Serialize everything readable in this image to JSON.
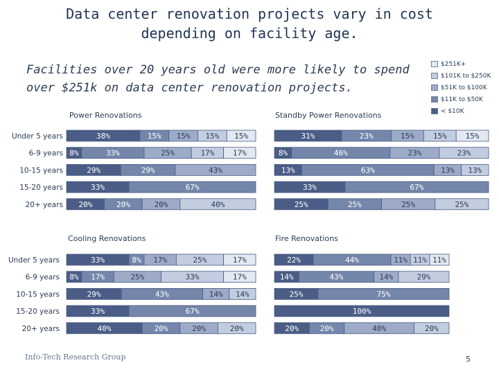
{
  "title_lines": [
    "Data center renovation projects vary in cost",
    "depending on facility age."
  ],
  "subtitle_lines": [
    "Facilities over 20 years old were more likely to spend",
    "over $251k on data center renovation projects."
  ],
  "legend": [
    {
      "label": "$251K+",
      "color": "#e3e8f1"
    },
    {
      "label": "$101K to $250K",
      "color": "#c3cde0"
    },
    {
      "label": "$51K to $100K",
      "color": "#9dabc8"
    },
    {
      "label": "$11K to $50K",
      "color": "#7586ab"
    },
    {
      "label": "< $10K",
      "color": "#4b5d86"
    }
  ],
  "footer": "Info-Tech Research Group",
  "page_number": "5",
  "chart_data": [
    {
      "type": "bar",
      "stacked": true,
      "orientation": "horizontal",
      "title": "Power Renovations",
      "categories": [
        "Under 5 years",
        "6-9 years",
        "10-15 years",
        "15-20 years",
        "20+ years"
      ],
      "series": [
        {
          "name": "< $10K",
          "values": [
            38,
            8,
            29,
            33,
            20
          ]
        },
        {
          "name": "$11K to $50K",
          "values": [
            15,
            33,
            29,
            67,
            20
          ]
        },
        {
          "name": "$51K to $100K",
          "values": [
            15,
            25,
            43,
            0,
            20
          ]
        },
        {
          "name": "$101K to $250K",
          "values": [
            15,
            17,
            0,
            0,
            40
          ]
        },
        {
          "name": "$251K+",
          "values": [
            15,
            17,
            0,
            0,
            0
          ]
        }
      ],
      "xlim": [
        0,
        100
      ]
    },
    {
      "type": "bar",
      "stacked": true,
      "orientation": "horizontal",
      "title": "Standby Power Renovations",
      "categories": [
        "Under 5 years",
        "6-9 years",
        "10-15 years",
        "15-20 years",
        "20+ years"
      ],
      "series": [
        {
          "name": "< $10K",
          "values": [
            31,
            8,
            13,
            33,
            25
          ]
        },
        {
          "name": "$11K to $50K",
          "values": [
            23,
            46,
            63,
            67,
            25
          ]
        },
        {
          "name": "$51K to $100K",
          "values": [
            15,
            23,
            13,
            0,
            25
          ]
        },
        {
          "name": "$101K to $250K",
          "values": [
            15,
            23,
            13,
            0,
            25
          ]
        },
        {
          "name": "$251K+",
          "values": [
            15,
            0,
            0,
            0,
            0
          ]
        }
      ],
      "xlim": [
        0,
        100
      ]
    },
    {
      "type": "bar",
      "stacked": true,
      "orientation": "horizontal",
      "title": "Cooling Renovations",
      "categories": [
        "Under 5 years",
        "6-9 years",
        "10-15 years",
        "15-20 years",
        "20+ years"
      ],
      "series": [
        {
          "name": "< $10K",
          "values": [
            33,
            8,
            29,
            33,
            40
          ]
        },
        {
          "name": "$11K to $50K",
          "values": [
            8,
            17,
            43,
            67,
            20
          ]
        },
        {
          "name": "$51K to $100K",
          "values": [
            17,
            25,
            14,
            0,
            20
          ]
        },
        {
          "name": "$101K to $250K",
          "values": [
            25,
            33,
            14,
            0,
            20
          ]
        },
        {
          "name": "$251K+",
          "values": [
            17,
            17,
            0,
            0,
            0
          ]
        }
      ],
      "xlim": [
        0,
        100
      ]
    },
    {
      "type": "bar",
      "stacked": true,
      "orientation": "horizontal",
      "title": "Fire Renovations",
      "categories": [
        "Under 5 years",
        "6-9 years",
        "10-15 years",
        "15-20 years",
        "20+ years"
      ],
      "series": [
        {
          "name": "< $10K",
          "values": [
            22,
            14,
            25,
            100,
            20
          ]
        },
        {
          "name": "$11K to $50K",
          "values": [
            44,
            43,
            75,
            0,
            20
          ]
        },
        {
          "name": "$51K to $100K",
          "values": [
            11,
            14,
            0,
            0,
            40
          ]
        },
        {
          "name": "$101K to $250K",
          "values": [
            11,
            29,
            0,
            0,
            20
          ]
        },
        {
          "name": "$251K+",
          "values": [
            11,
            0,
            0,
            0,
            0
          ]
        }
      ],
      "xlim": [
        0,
        100
      ]
    }
  ]
}
